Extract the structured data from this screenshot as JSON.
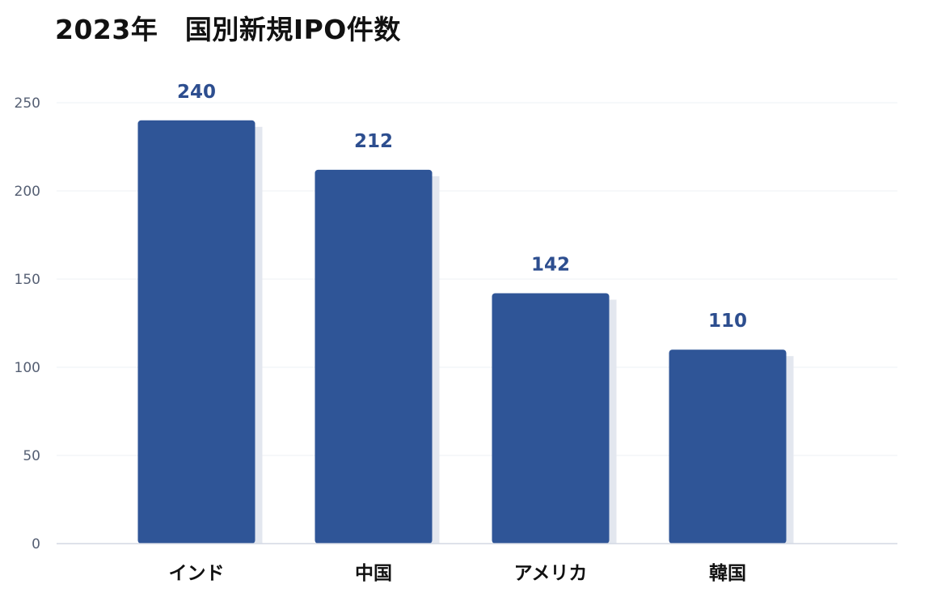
{
  "chart_data": {
    "type": "bar",
    "title": "2023年　国別新規IPO件数",
    "xlabel": "",
    "ylabel": "",
    "categories": [
      "インド",
      "中国",
      "アメリカ",
      "韓国"
    ],
    "values": [
      240,
      212,
      142,
      110
    ],
    "value_labels": [
      "240",
      "212",
      "142",
      "110"
    ],
    "ylim": [
      0,
      250
    ],
    "yticks": [
      0,
      50,
      100,
      150,
      200,
      250
    ],
    "grid": true,
    "bar_color": "#2f5597",
    "shadow_color": "#e3e7ef",
    "value_label_color": "#2d4e8f"
  }
}
